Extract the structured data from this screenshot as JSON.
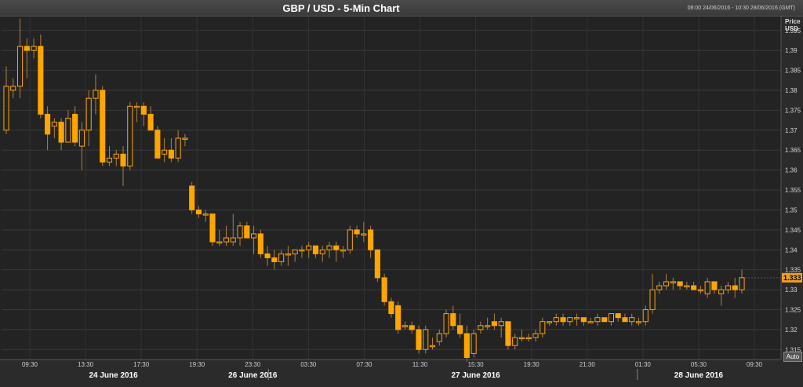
{
  "header": {
    "title": "GBP / USD - 5-Min Chart",
    "range": "08:00 24/06/2016 - 10:30 28/06/2016 (GMT)"
  },
  "axis": {
    "price_label_line1": "Price",
    "price_label_line2": "USD",
    "last_price": "1.333",
    "auto_label": "Auto"
  },
  "colors": {
    "background": "#232323",
    "up_candle": "#ffa500",
    "down_candle": "#ffa500",
    "last_price_marker": "#f0a020"
  },
  "chart_data": {
    "type": "candlestick",
    "title": "GBP / USD - 5-Min Chart",
    "xlabel": "",
    "ylabel": "Price USD",
    "ylim": [
      1.3125,
      1.3985
    ],
    "yticks": [
      1.315,
      1.32,
      1.325,
      1.33,
      1.335,
      1.34,
      1.345,
      1.35,
      1.355,
      1.36,
      1.365,
      1.37,
      1.375,
      1.38,
      1.385,
      1.39,
      1.395
    ],
    "last_price": 1.333,
    "time_ticks": [
      "09:30",
      "13:30",
      "17:30",
      "19:30",
      "23:30",
      "03:30",
      "07:30",
      "11:30",
      "15:30",
      "19:30",
      "21:30",
      "01:30",
      "05:30",
      "09:30"
    ],
    "date_labels": [
      "24 June 2016",
      "26 June 2016",
      "27 June 2016",
      "28 June 2016"
    ],
    "grid": true,
    "candles": [
      {
        "o": 1.37,
        "h": 1.386,
        "l": 1.369,
        "c": 1.381
      },
      {
        "o": 1.38,
        "h": 1.383,
        "l": 1.378,
        "c": 1.381
      },
      {
        "o": 1.381,
        "h": 1.398,
        "l": 1.378,
        "c": 1.391
      },
      {
        "o": 1.391,
        "h": 1.393,
        "l": 1.383,
        "c": 1.39
      },
      {
        "o": 1.39,
        "h": 1.393,
        "l": 1.388,
        "c": 1.391
      },
      {
        "o": 1.391,
        "h": 1.394,
        "l": 1.373,
        "c": 1.374
      },
      {
        "o": 1.374,
        "h": 1.376,
        "l": 1.365,
        "c": 1.369
      },
      {
        "o": 1.371,
        "h": 1.373,
        "l": 1.368,
        "c": 1.372
      },
      {
        "o": 1.372,
        "h": 1.373,
        "l": 1.365,
        "c": 1.367
      },
      {
        "o": 1.367,
        "h": 1.375,
        "l": 1.367,
        "c": 1.373
      },
      {
        "o": 1.374,
        "h": 1.376,
        "l": 1.366,
        "c": 1.367
      },
      {
        "o": 1.366,
        "h": 1.372,
        "l": 1.36,
        "c": 1.37
      },
      {
        "o": 1.37,
        "h": 1.38,
        "l": 1.366,
        "c": 1.378
      },
      {
        "o": 1.378,
        "h": 1.384,
        "l": 1.374,
        "c": 1.38
      },
      {
        "o": 1.38,
        "h": 1.381,
        "l": 1.361,
        "c": 1.362
      },
      {
        "o": 1.362,
        "h": 1.366,
        "l": 1.361,
        "c": 1.363
      },
      {
        "o": 1.363,
        "h": 1.365,
        "l": 1.361,
        "c": 1.364
      },
      {
        "o": 1.364,
        "h": 1.366,
        "l": 1.356,
        "c": 1.361
      },
      {
        "o": 1.361,
        "h": 1.377,
        "l": 1.36,
        "c": 1.376
      },
      {
        "o": 1.376,
        "h": 1.377,
        "l": 1.372,
        "c": 1.376
      },
      {
        "o": 1.376,
        "h": 1.377,
        "l": 1.371,
        "c": 1.374
      },
      {
        "o": 1.374,
        "h": 1.376,
        "l": 1.37,
        "c": 1.37
      },
      {
        "o": 1.37,
        "h": 1.371,
        "l": 1.363,
        "c": 1.363
      },
      {
        "o": 1.364,
        "h": 1.368,
        "l": 1.362,
        "c": 1.365
      },
      {
        "o": 1.365,
        "h": 1.368,
        "l": 1.362,
        "c": 1.363
      },
      {
        "o": 1.363,
        "h": 1.37,
        "l": 1.362,
        "c": 1.368
      },
      {
        "o": 1.368,
        "h": 1.369,
        "l": 1.366,
        "c": 1.368
      },
      {
        "o": 1.356,
        "h": 1.357,
        "l": 1.349,
        "c": 1.35
      },
      {
        "o": 1.35,
        "h": 1.351,
        "l": 1.348,
        "c": 1.349
      },
      {
        "o": 1.349,
        "h": 1.35,
        "l": 1.347,
        "c": 1.349
      },
      {
        "o": 1.349,
        "h": 1.349,
        "l": 1.341,
        "c": 1.342
      },
      {
        "o": 1.342,
        "h": 1.345,
        "l": 1.341,
        "c": 1.342
      },
      {
        "o": 1.342,
        "h": 1.346,
        "l": 1.341,
        "c": 1.343
      },
      {
        "o": 1.342,
        "h": 1.349,
        "l": 1.341,
        "c": 1.343
      },
      {
        "o": 1.343,
        "h": 1.347,
        "l": 1.341,
        "c": 1.346
      },
      {
        "o": 1.346,
        "h": 1.347,
        "l": 1.343,
        "c": 1.343
      },
      {
        "o": 1.343,
        "h": 1.346,
        "l": 1.339,
        "c": 1.344
      },
      {
        "o": 1.344,
        "h": 1.345,
        "l": 1.338,
        "c": 1.339
      },
      {
        "o": 1.339,
        "h": 1.341,
        "l": 1.336,
        "c": 1.338
      },
      {
        "o": 1.338,
        "h": 1.34,
        "l": 1.335,
        "c": 1.337
      },
      {
        "o": 1.337,
        "h": 1.34,
        "l": 1.336,
        "c": 1.339
      },
      {
        "o": 1.339,
        "h": 1.341,
        "l": 1.336,
        "c": 1.339
      },
      {
        "o": 1.339,
        "h": 1.34,
        "l": 1.337,
        "c": 1.34
      },
      {
        "o": 1.34,
        "h": 1.341,
        "l": 1.338,
        "c": 1.34
      },
      {
        "o": 1.34,
        "h": 1.342,
        "l": 1.338,
        "c": 1.341
      },
      {
        "o": 1.341,
        "h": 1.341,
        "l": 1.338,
        "c": 1.339
      },
      {
        "o": 1.339,
        "h": 1.341,
        "l": 1.337,
        "c": 1.34
      },
      {
        "o": 1.34,
        "h": 1.342,
        "l": 1.338,
        "c": 1.341
      },
      {
        "o": 1.341,
        "h": 1.342,
        "l": 1.337,
        "c": 1.34
      },
      {
        "o": 1.34,
        "h": 1.341,
        "l": 1.338,
        "c": 1.34
      },
      {
        "o": 1.34,
        "h": 1.346,
        "l": 1.339,
        "c": 1.345
      },
      {
        "o": 1.345,
        "h": 1.346,
        "l": 1.343,
        "c": 1.344
      },
      {
        "o": 1.344,
        "h": 1.347,
        "l": 1.342,
        "c": 1.344
      },
      {
        "o": 1.345,
        "h": 1.346,
        "l": 1.338,
        "c": 1.34
      },
      {
        "o": 1.34,
        "h": 1.34,
        "l": 1.332,
        "c": 1.333
      },
      {
        "o": 1.333,
        "h": 1.334,
        "l": 1.326,
        "c": 1.327
      },
      {
        "o": 1.327,
        "h": 1.328,
        "l": 1.323,
        "c": 1.324
      },
      {
        "o": 1.326,
        "h": 1.327,
        "l": 1.319,
        "c": 1.32
      },
      {
        "o": 1.321,
        "h": 1.322,
        "l": 1.32,
        "c": 1.321
      },
      {
        "o": 1.321,
        "h": 1.322,
        "l": 1.319,
        "c": 1.32
      },
      {
        "o": 1.32,
        "h": 1.321,
        "l": 1.314,
        "c": 1.315
      },
      {
        "o": 1.315,
        "h": 1.321,
        "l": 1.314,
        "c": 1.32
      },
      {
        "o": 1.316,
        "h": 1.318,
        "l": 1.315,
        "c": 1.316
      },
      {
        "o": 1.317,
        "h": 1.32,
        "l": 1.316,
        "c": 1.319
      },
      {
        "o": 1.319,
        "h": 1.325,
        "l": 1.318,
        "c": 1.324
      },
      {
        "o": 1.324,
        "h": 1.326,
        "l": 1.32,
        "c": 1.321
      },
      {
        "o": 1.321,
        "h": 1.324,
        "l": 1.318,
        "c": 1.319
      },
      {
        "o": 1.319,
        "h": 1.321,
        "l": 1.312,
        "c": 1.313
      },
      {
        "o": 1.314,
        "h": 1.32,
        "l": 1.313,
        "c": 1.319
      },
      {
        "o": 1.32,
        "h": 1.322,
        "l": 1.319,
        "c": 1.321
      },
      {
        "o": 1.321,
        "h": 1.323,
        "l": 1.32,
        "c": 1.321
      },
      {
        "o": 1.322,
        "h": 1.324,
        "l": 1.32,
        "c": 1.321
      },
      {
        "o": 1.321,
        "h": 1.323,
        "l": 1.318,
        "c": 1.322
      },
      {
        "o": 1.322,
        "h": 1.322,
        "l": 1.315,
        "c": 1.316
      },
      {
        "o": 1.316,
        "h": 1.319,
        "l": 1.315,
        "c": 1.318
      },
      {
        "o": 1.318,
        "h": 1.32,
        "l": 1.317,
        "c": 1.318
      },
      {
        "o": 1.318,
        "h": 1.319,
        "l": 1.317,
        "c": 1.318
      },
      {
        "o": 1.318,
        "h": 1.32,
        "l": 1.317,
        "c": 1.319
      },
      {
        "o": 1.319,
        "h": 1.323,
        "l": 1.318,
        "c": 1.322
      },
      {
        "o": 1.322,
        "h": 1.322,
        "l": 1.321,
        "c": 1.322
      },
      {
        "o": 1.322,
        "h": 1.324,
        "l": 1.321,
        "c": 1.323
      },
      {
        "o": 1.323,
        "h": 1.324,
        "l": 1.321,
        "c": 1.322
      },
      {
        "o": 1.322,
        "h": 1.323,
        "l": 1.321,
        "c": 1.323
      },
      {
        "o": 1.323,
        "h": 1.324,
        "l": 1.321,
        "c": 1.323
      },
      {
        "o": 1.323,
        "h": 1.323,
        "l": 1.321,
        "c": 1.322
      },
      {
        "o": 1.322,
        "h": 1.323,
        "l": 1.322,
        "c": 1.322
      },
      {
        "o": 1.322,
        "h": 1.324,
        "l": 1.321,
        "c": 1.323
      },
      {
        "o": 1.323,
        "h": 1.323,
        "l": 1.322,
        "c": 1.322
      },
      {
        "o": 1.322,
        "h": 1.324,
        "l": 1.321,
        "c": 1.324
      },
      {
        "o": 1.324,
        "h": 1.324,
        "l": 1.322,
        "c": 1.323
      },
      {
        "o": 1.323,
        "h": 1.324,
        "l": 1.322,
        "c": 1.322
      },
      {
        "o": 1.322,
        "h": 1.324,
        "l": 1.321,
        "c": 1.323
      },
      {
        "o": 1.322,
        "h": 1.323,
        "l": 1.321,
        "c": 1.322
      },
      {
        "o": 1.322,
        "h": 1.326,
        "l": 1.321,
        "c": 1.325
      },
      {
        "o": 1.325,
        "h": 1.334,
        "l": 1.324,
        "c": 1.33
      },
      {
        "o": 1.33,
        "h": 1.332,
        "l": 1.329,
        "c": 1.331
      },
      {
        "o": 1.331,
        "h": 1.334,
        "l": 1.33,
        "c": 1.332
      },
      {
        "o": 1.332,
        "h": 1.333,
        "l": 1.33,
        "c": 1.332
      },
      {
        "o": 1.332,
        "h": 1.332,
        "l": 1.33,
        "c": 1.331
      },
      {
        "o": 1.331,
        "h": 1.332,
        "l": 1.33,
        "c": 1.331
      },
      {
        "o": 1.331,
        "h": 1.332,
        "l": 1.33,
        "c": 1.33
      },
      {
        "o": 1.33,
        "h": 1.331,
        "l": 1.329,
        "c": 1.33
      },
      {
        "o": 1.329,
        "h": 1.333,
        "l": 1.328,
        "c": 1.332
      },
      {
        "o": 1.332,
        "h": 1.332,
        "l": 1.329,
        "c": 1.33
      },
      {
        "o": 1.329,
        "h": 1.331,
        "l": 1.326,
        "c": 1.33
      },
      {
        "o": 1.33,
        "h": 1.332,
        "l": 1.329,
        "c": 1.331
      },
      {
        "o": 1.331,
        "h": 1.333,
        "l": 1.328,
        "c": 1.33
      },
      {
        "o": 1.33,
        "h": 1.335,
        "l": 1.329,
        "c": 1.333
      }
    ]
  }
}
